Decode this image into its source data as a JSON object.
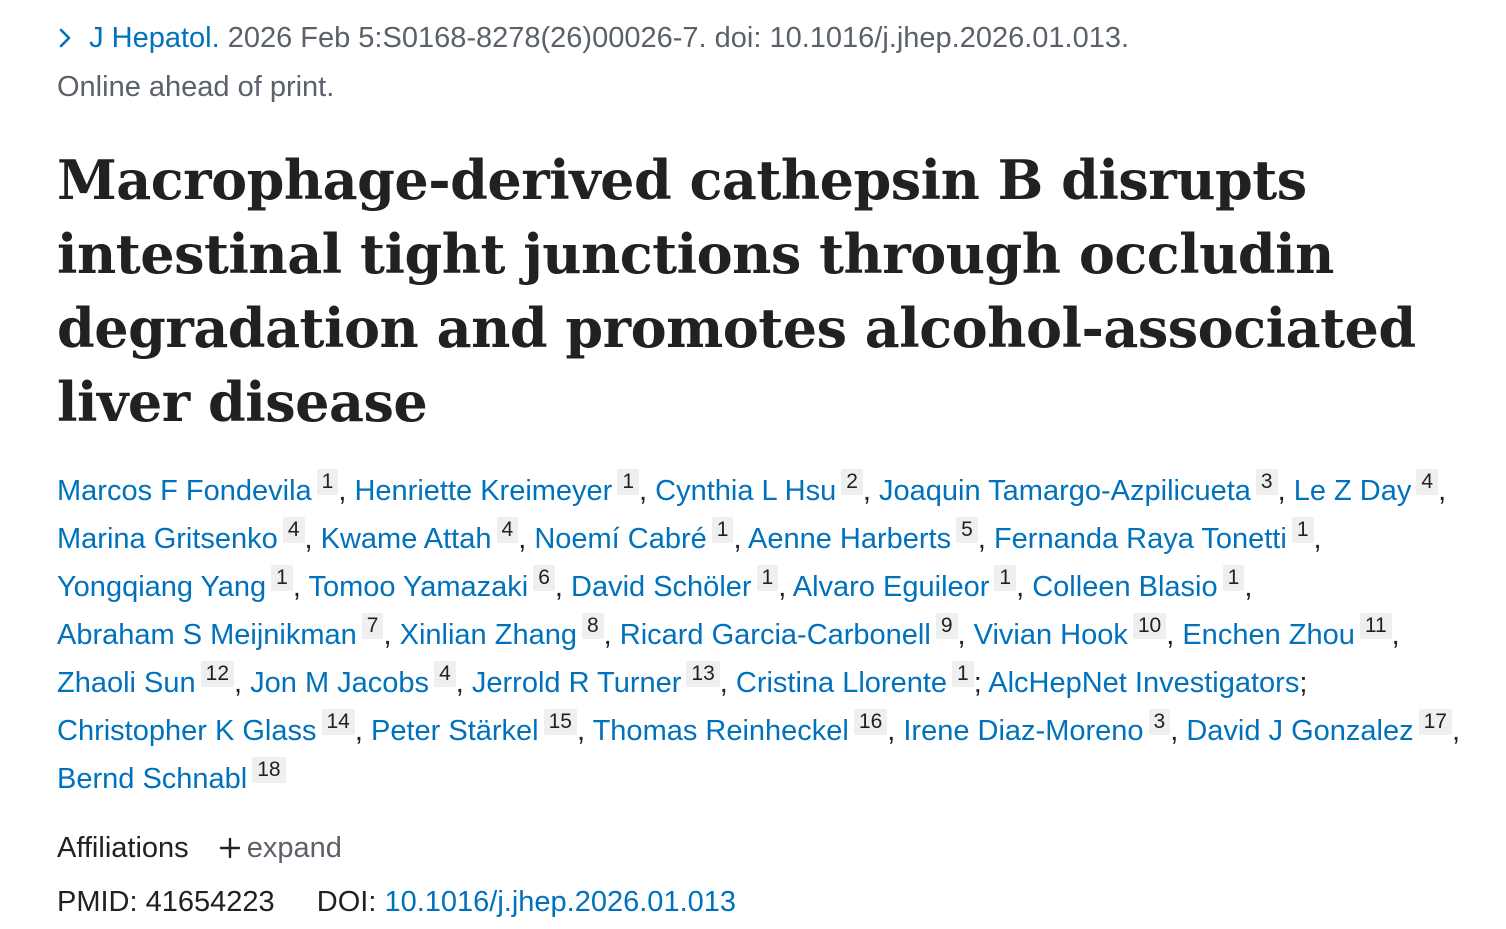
{
  "citation": {
    "journal": "J Hepatol.",
    "details": "2026 Feb 5:S0168-8278(26)00026-7. doi: 10.1016/j.jhep.2026.01.013.",
    "status": "Online ahead of print."
  },
  "title": "Macrophage-derived cathepsin B disrupts intestinal tight junctions through occludin degradation and promotes alcohol-associated liver disease",
  "authors": [
    {
      "name": "Marcos F Fondevila",
      "aff": "1",
      "sep": ","
    },
    {
      "name": "Henriette Kreimeyer",
      "aff": "1",
      "sep": ","
    },
    {
      "name": "Cynthia L Hsu",
      "aff": "2",
      "sep": ","
    },
    {
      "name": "Joaquin Tamargo-Azpilicueta",
      "aff": "3",
      "sep": ","
    },
    {
      "name": "Le Z Day",
      "aff": "4",
      "sep": ","
    },
    {
      "name": "Marina Gritsenko",
      "aff": "4",
      "sep": ","
    },
    {
      "name": "Kwame Attah",
      "aff": "4",
      "sep": ","
    },
    {
      "name": "Noemí Cabré",
      "aff": "1",
      "sep": ","
    },
    {
      "name": "Aenne Harberts",
      "aff": "5",
      "sep": ","
    },
    {
      "name": "Fernanda Raya Tonetti",
      "aff": "1",
      "sep": ","
    },
    {
      "name": "Yongqiang Yang",
      "aff": "1",
      "sep": ","
    },
    {
      "name": "Tomoo Yamazaki",
      "aff": "6",
      "sep": ","
    },
    {
      "name": "David Schöler",
      "aff": "1",
      "sep": ","
    },
    {
      "name": "Alvaro Eguileor",
      "aff": "1",
      "sep": ","
    },
    {
      "name": "Colleen Blasio",
      "aff": "1",
      "sep": ","
    },
    {
      "name": "Abraham S Meijnikman",
      "aff": "7",
      "sep": ","
    },
    {
      "name": "Xinlian Zhang",
      "aff": "8",
      "sep": ","
    },
    {
      "name": "Ricard Garcia-Carbonell",
      "aff": "9",
      "sep": ","
    },
    {
      "name": "Vivian Hook",
      "aff": "10",
      "sep": ","
    },
    {
      "name": "Enchen Zhou",
      "aff": "11",
      "sep": ","
    },
    {
      "name": "Zhaoli Sun",
      "aff": "12",
      "sep": ","
    },
    {
      "name": "Jon M Jacobs",
      "aff": "4",
      "sep": ","
    },
    {
      "name": "Jerrold R Turner",
      "aff": "13",
      "sep": ","
    },
    {
      "name": "Cristina Llorente",
      "aff": "1",
      "sep": ";"
    },
    {
      "name": "AlcHepNet Investigators",
      "aff": "",
      "sep": ";"
    },
    {
      "name": "Christopher K Glass",
      "aff": "14",
      "sep": ","
    },
    {
      "name": "Peter Stärkel",
      "aff": "15",
      "sep": ","
    },
    {
      "name": "Thomas Reinheckel",
      "aff": "16",
      "sep": ","
    },
    {
      "name": "Irene Diaz-Moreno",
      "aff": "3",
      "sep": ","
    },
    {
      "name": "David J Gonzalez",
      "aff": "17",
      "sep": ","
    },
    {
      "name": "Bernd Schnabl",
      "aff": "18",
      "sep": ""
    }
  ],
  "affiliations": {
    "label": "Affiliations",
    "expand_icon": "+",
    "expand_label": "expand"
  },
  "identifiers": {
    "pmid_label": "PMID:",
    "pmid": "41654223",
    "doi_label": "DOI:",
    "doi": "10.1016/j.jhep.2026.01.013"
  },
  "icons": {
    "journal_chevron": "chevron-right-icon"
  },
  "colors": {
    "link": "#0071bc",
    "muted": "#5b616b",
    "text": "#212121",
    "badge_bg": "#efefef"
  }
}
